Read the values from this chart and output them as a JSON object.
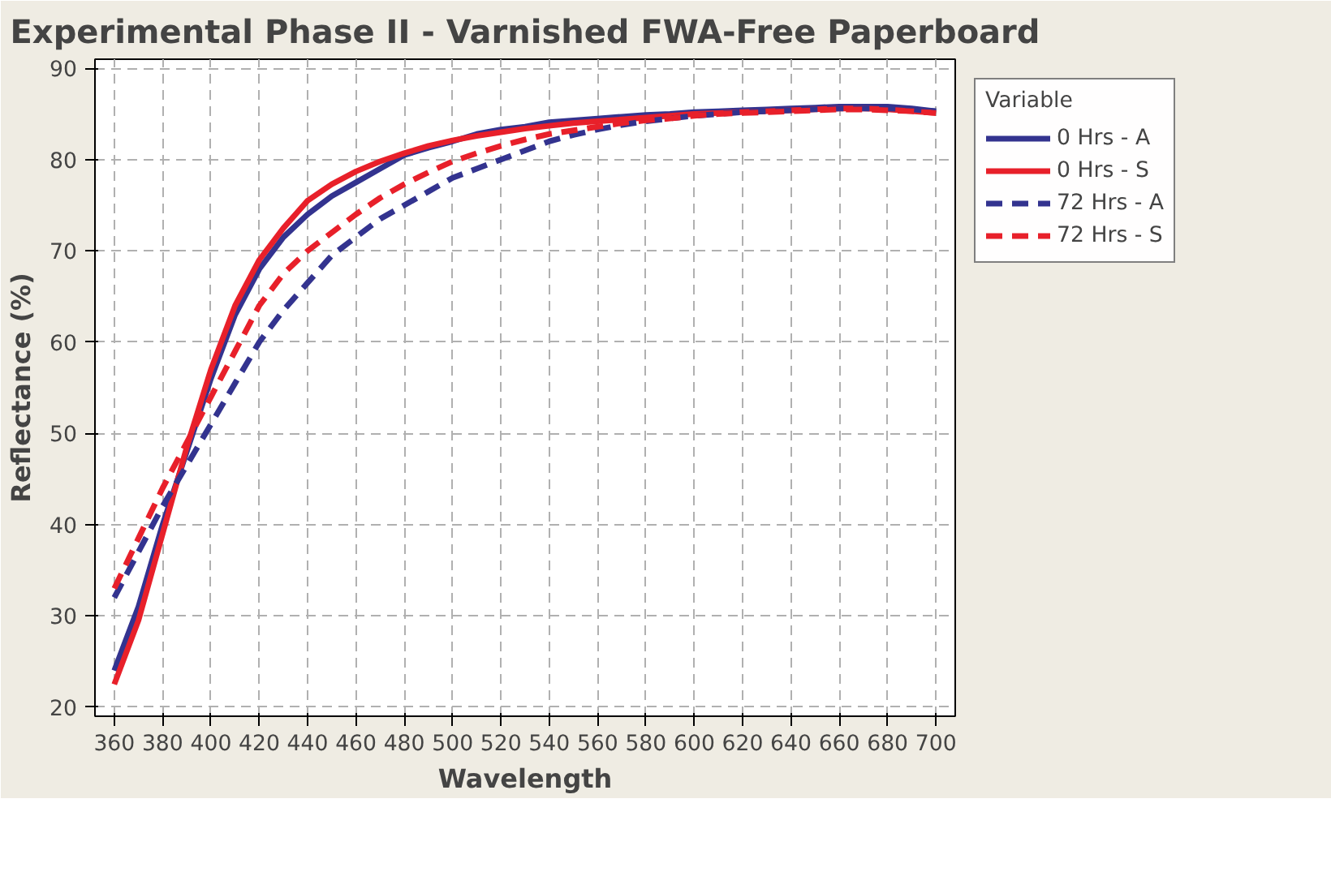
{
  "chart_data": {
    "type": "line",
    "title": "Experimental Phase II - Varnished FWA-Free Paperboard",
    "xlabel": "Wavelength",
    "ylabel": "Reflectance (%)",
    "legend_title": "Variable",
    "x": [
      360,
      370,
      380,
      390,
      400,
      410,
      420,
      430,
      440,
      450,
      460,
      470,
      480,
      490,
      500,
      510,
      520,
      530,
      540,
      550,
      560,
      570,
      580,
      590,
      600,
      610,
      620,
      630,
      640,
      650,
      660,
      670,
      680,
      690,
      700
    ],
    "series": [
      {
        "name": "0 Hrs - A",
        "color": "#33338f",
        "line_style": "solid",
        "values": [
          24,
          31,
          40,
          48,
          56,
          63,
          68,
          71.5,
          74,
          76,
          77.5,
          79,
          80.5,
          81.3,
          82,
          82.8,
          83.3,
          83.6,
          84.1,
          84.3,
          84.5,
          84.7,
          84.9,
          85,
          85.2,
          85.3,
          85.4,
          85.5,
          85.6,
          85.7,
          85.8,
          85.8,
          85.8,
          85.6,
          85.3
        ]
      },
      {
        "name": "0 Hrs - S",
        "color": "#e8202a",
        "line_style": "solid",
        "values": [
          22.5,
          29.5,
          39,
          48.5,
          57,
          64,
          69,
          72.5,
          75.5,
          77.3,
          78.7,
          79.8,
          80.7,
          81.5,
          82.1,
          82.6,
          83,
          83.4,
          83.7,
          84,
          84.2,
          84.4,
          84.6,
          84.8,
          85,
          85.1,
          85.2,
          85.3,
          85.4,
          85.5,
          85.6,
          85.6,
          85.5,
          85.3,
          85.1
        ]
      },
      {
        "name": "72 Hrs - A",
        "color": "#33338f",
        "line_style": "dashed",
        "values": [
          32,
          37,
          42,
          46.5,
          51,
          55.5,
          60,
          63.5,
          66.5,
          69.5,
          71.5,
          73.5,
          75,
          76.5,
          78,
          79,
          80,
          81,
          82,
          82.7,
          83.3,
          83.8,
          84.2,
          84.5,
          84.8,
          85,
          85.2,
          85.3,
          85.4,
          85.5,
          85.6,
          85.6,
          85.6,
          85.5,
          85.3
        ]
      },
      {
        "name": "72 Hrs - S",
        "color": "#e8202a",
        "line_style": "dashed",
        "values": [
          33,
          38.5,
          44,
          49,
          54,
          59,
          64,
          67.5,
          70,
          72,
          74,
          75.8,
          77.3,
          78.6,
          79.8,
          80.7,
          81.5,
          82.2,
          82.8,
          83.2,
          83.6,
          84,
          84.3,
          84.5,
          84.8,
          85,
          85.1,
          85.2,
          85.3,
          85.4,
          85.5,
          85.5,
          85.4,
          85.3,
          85.1
        ]
      }
    ],
    "xlim": [
      352,
      708
    ],
    "ylim": [
      19,
      91
    ],
    "xticks": [
      360,
      380,
      400,
      420,
      440,
      460,
      480,
      500,
      520,
      540,
      560,
      580,
      600,
      620,
      640,
      660,
      680,
      700
    ],
    "yticks": [
      20,
      30,
      40,
      50,
      60,
      70,
      80,
      90
    ],
    "grid": true,
    "legend": "right",
    "marker": "none"
  }
}
